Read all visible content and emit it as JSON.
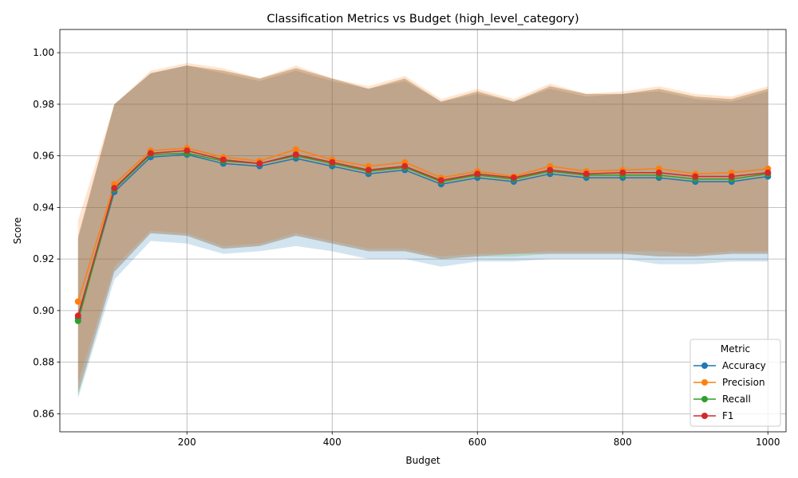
{
  "chart_data": {
    "type": "line",
    "title": "Classification Metrics vs Budget (high_level_category)",
    "xlabel": "Budget",
    "ylabel": "Score",
    "xlim": [
      25,
      1025
    ],
    "ylim": [
      0.853,
      1.009
    ],
    "xticks": [
      200,
      400,
      600,
      800,
      1000
    ],
    "yticks": [
      0.86,
      0.88,
      0.9,
      0.92,
      0.94,
      0.96,
      0.98,
      1.0
    ],
    "xtick_labels": [
      "200",
      "400",
      "600",
      "800",
      "1000"
    ],
    "ytick_labels": [
      "0.86",
      "0.88",
      "0.90",
      "0.92",
      "0.94",
      "0.96",
      "0.98",
      "1.00"
    ],
    "grid": true,
    "legend": {
      "title": "Metric",
      "position": "bottom-right"
    },
    "x": [
      50,
      100,
      150,
      200,
      250,
      300,
      350,
      400,
      450,
      500,
      550,
      600,
      650,
      700,
      750,
      800,
      850,
      900,
      950,
      1000
    ],
    "series": [
      {
        "name": "Accuracy",
        "color": "#1f77b4",
        "values": [
          0.897,
          0.946,
          0.9595,
          0.9605,
          0.957,
          0.956,
          0.959,
          0.956,
          0.953,
          0.9545,
          0.949,
          0.9515,
          0.95,
          0.953,
          0.9515,
          0.9515,
          0.9515,
          0.95,
          0.95,
          0.952
        ],
        "band_lower": [
          0.866,
          0.912,
          0.927,
          0.926,
          0.922,
          0.923,
          0.925,
          0.923,
          0.92,
          0.92,
          0.917,
          0.919,
          0.919,
          0.92,
          0.92,
          0.92,
          0.918,
          0.918,
          0.919,
          0.919
        ],
        "band_upper": [
          0.928,
          0.98,
          0.992,
          0.995,
          0.992,
          0.989,
          0.993,
          0.989,
          0.986,
          0.989,
          0.981,
          0.984,
          0.981,
          0.986,
          0.983,
          0.984,
          0.985,
          0.982,
          0.981,
          0.985
        ]
      },
      {
        "name": "Precision",
        "color": "#ff7f0e",
        "values": [
          0.9035,
          0.949,
          0.962,
          0.963,
          0.9595,
          0.958,
          0.9625,
          0.9585,
          0.956,
          0.9575,
          0.9515,
          0.954,
          0.952,
          0.956,
          0.954,
          0.9545,
          0.955,
          0.953,
          0.9535,
          0.955
        ],
        "band_lower": [
          0.872,
          0.917,
          0.931,
          0.93,
          0.925,
          0.926,
          0.93,
          0.927,
          0.924,
          0.924,
          0.921,
          0.922,
          0.922,
          0.923,
          0.923,
          0.923,
          0.923,
          0.922,
          0.923,
          0.923
        ],
        "band_upper": [
          0.935,
          0.98,
          0.993,
          0.996,
          0.994,
          0.99,
          0.995,
          0.99,
          0.987,
          0.991,
          0.982,
          0.986,
          0.982,
          0.988,
          0.984,
          0.985,
          0.987,
          0.984,
          0.983,
          0.987
        ]
      },
      {
        "name": "Recall",
        "color": "#2ca02c",
        "values": [
          0.896,
          0.947,
          0.9605,
          0.961,
          0.958,
          0.957,
          0.96,
          0.957,
          0.954,
          0.9555,
          0.95,
          0.9525,
          0.951,
          0.954,
          0.9525,
          0.9525,
          0.9525,
          0.951,
          0.951,
          0.953
        ],
        "band_lower": [
          0.867,
          0.915,
          0.93,
          0.929,
          0.924,
          0.925,
          0.929,
          0.926,
          0.923,
          0.923,
          0.92,
          0.921,
          0.921,
          0.922,
          0.922,
          0.922,
          0.921,
          0.921,
          0.922,
          0.922
        ],
        "band_upper": [
          0.928,
          0.98,
          0.992,
          0.995,
          0.993,
          0.99,
          0.994,
          0.99,
          0.986,
          0.99,
          0.981,
          0.985,
          0.981,
          0.987,
          0.984,
          0.984,
          0.986,
          0.983,
          0.982,
          0.986
        ]
      },
      {
        "name": "F1",
        "color": "#d62728",
        "values": [
          0.898,
          0.9475,
          0.961,
          0.962,
          0.9585,
          0.957,
          0.9605,
          0.9575,
          0.9545,
          0.956,
          0.9505,
          0.953,
          0.9515,
          0.9545,
          0.953,
          0.9535,
          0.9535,
          0.952,
          0.952,
          0.9535
        ],
        "band_lower": [
          0.868,
          0.915,
          0.93,
          0.929,
          0.924,
          0.925,
          0.929,
          0.926,
          0.923,
          0.923,
          0.92,
          0.921,
          0.922,
          0.922,
          0.922,
          0.922,
          0.921,
          0.921,
          0.922,
          0.922
        ],
        "band_upper": [
          0.929,
          0.98,
          0.992,
          0.995,
          0.993,
          0.99,
          0.994,
          0.99,
          0.986,
          0.99,
          0.981,
          0.985,
          0.981,
          0.987,
          0.984,
          0.984,
          0.986,
          0.983,
          0.982,
          0.986
        ]
      }
    ]
  }
}
